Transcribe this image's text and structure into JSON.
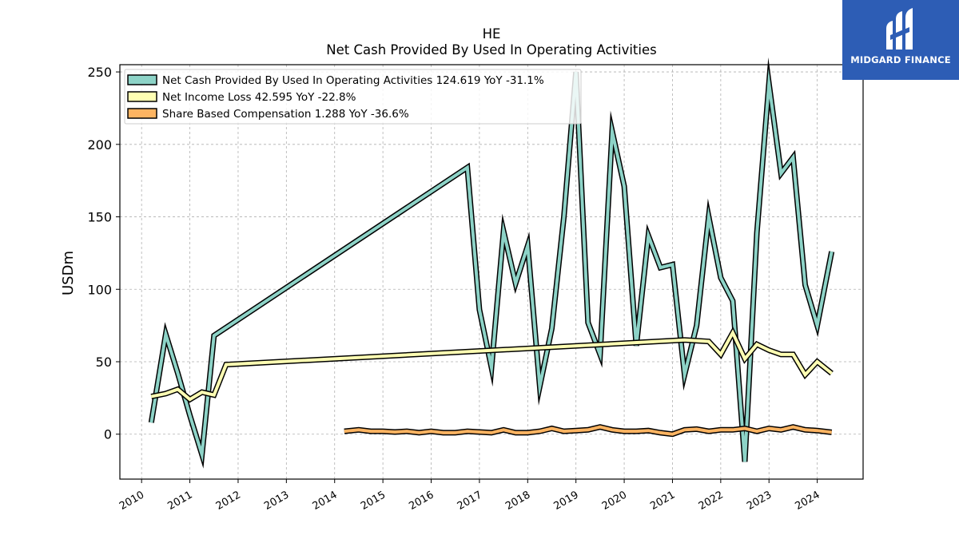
{
  "logo": {
    "text": "MIDGARD FINANCE",
    "bg_color": "#2d5db5"
  },
  "chart_data": {
    "type": "line",
    "title": "HE",
    "subtitle": "Net Cash Provided By Used In Operating Activities",
    "xlabel": "",
    "ylabel": "USDm",
    "xlim": [
      2009.55,
      2024.95
    ],
    "ylim": [
      -31,
      255
    ],
    "x_ticks": [
      2010,
      2011,
      2012,
      2013,
      2014,
      2015,
      2016,
      2017,
      2018,
      2019,
      2020,
      2021,
      2022,
      2023,
      2024
    ],
    "y_ticks": [
      0,
      50,
      100,
      150,
      200,
      250
    ],
    "grid": true,
    "legend_position": "top-left",
    "series": [
      {
        "name": "Net Cash Provided By Used In Operating Activities",
        "legend_label": "Net Cash Provided By Used In Operating Activities  124.619 YoY -31.1%",
        "color": "#8dd3c7",
        "x": [
          2010.2,
          2010.5,
          2010.75,
          2011.0,
          2011.25,
          2011.5,
          2016.75,
          2017.0,
          2017.25,
          2017.5,
          2017.75,
          2018.0,
          2018.25,
          2018.5,
          2018.75,
          2019.0,
          2019.25,
          2019.5,
          2019.75,
          2020.0,
          2020.25,
          2020.5,
          2020.75,
          2021.0,
          2021.25,
          2021.5,
          2021.75,
          2022.0,
          2022.25,
          2022.5,
          2022.75,
          2023.0,
          2023.25,
          2023.5,
          2023.75,
          2024.0,
          2024.3
        ],
        "y": [
          8,
          69,
          42,
          13,
          -14,
          68,
          184,
          86,
          46,
          140,
          104,
          130,
          33,
          73,
          150,
          250,
          77,
          55,
          209,
          171,
          61,
          137,
          115,
          117,
          41,
          75,
          150,
          108,
          92,
          -19,
          139,
          242,
          180,
          191,
          103,
          75,
          126
        ]
      },
      {
        "name": "Net Income Loss",
        "legend_label": "Net Income Loss  42.595 YoY -22.8%",
        "color": "#ffffb3",
        "x": [
          2010.2,
          2010.5,
          2010.75,
          2011.0,
          2011.25,
          2011.5,
          2011.75,
          2021.25,
          2021.75,
          2022.0,
          2022.25,
          2022.5,
          2022.75,
          2023.0,
          2023.25,
          2023.5,
          2023.75,
          2024.0,
          2024.3
        ],
        "y": [
          26,
          28,
          31,
          24,
          29,
          27,
          48,
          65,
          64,
          55,
          70,
          52,
          62,
          58,
          55,
          55,
          41,
          50,
          42
        ]
      },
      {
        "name": "Share Based Compensation",
        "legend_label": "Share Based Compensation  1.288 YoY -36.6%",
        "color": "#fdb462",
        "x": [
          2014.2,
          2014.5,
          2014.75,
          2015.0,
          2015.25,
          2015.5,
          2015.75,
          2016.0,
          2016.25,
          2016.5,
          2016.75,
          2017.0,
          2017.25,
          2017.5,
          2017.75,
          2018.0,
          2018.25,
          2018.5,
          2018.75,
          2019.0,
          2019.25,
          2019.5,
          2019.75,
          2020.0,
          2020.25,
          2020.5,
          2020.75,
          2021.0,
          2021.25,
          2021.5,
          2021.75,
          2022.0,
          2022.25,
          2022.5,
          2022.75,
          2023.0,
          2023.25,
          2023.5,
          2023.75,
          2024.0,
          2024.3
        ],
        "y": [
          2,
          3,
          2,
          2,
          1.5,
          2,
          1,
          2,
          1,
          1,
          2,
          1.5,
          1,
          3,
          1,
          1,
          2,
          4,
          2,
          2.5,
          3,
          5,
          3,
          2,
          2,
          2.5,
          1,
          0,
          3,
          3.5,
          2,
          3,
          3,
          4,
          2,
          4,
          3,
          5,
          3,
          2.5,
          1.3
        ]
      }
    ]
  }
}
